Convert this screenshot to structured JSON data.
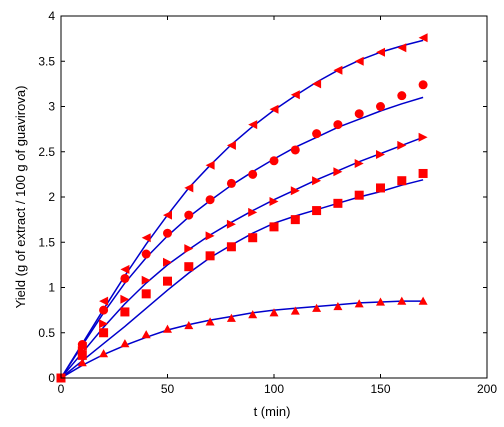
{
  "chart_data": {
    "type": "scatter",
    "title": "",
    "xlabel": "t (min)",
    "ylabel": "Yield (g of extract / 100 g of guavirova)",
    "xlim": [
      0,
      200
    ],
    "ylim": [
      0,
      4
    ],
    "x_ticks": [
      "0",
      "50",
      "100",
      "150",
      "200"
    ],
    "y_ticks": [
      "0",
      "0.5",
      "1",
      "1.5",
      "2",
      "2.5",
      "3",
      "3.5",
      "4"
    ],
    "grid": false,
    "legend": "none",
    "marker_color": "#ff0000",
    "line_color": "#0000cc",
    "series": [
      {
        "marker": "triangle-left",
        "x": [
          0,
          10,
          20,
          30,
          40,
          50,
          60,
          70,
          80,
          90,
          100,
          110,
          120,
          130,
          140,
          150,
          160,
          170
        ],
        "y": [
          0,
          0.35,
          0.85,
          1.2,
          1.55,
          1.8,
          2.1,
          2.35,
          2.57,
          2.8,
          2.97,
          3.13,
          3.25,
          3.4,
          3.5,
          3.6,
          3.65,
          3.76
        ]
      },
      {
        "marker": "circle",
        "x": [
          0,
          10,
          20,
          30,
          40,
          50,
          60,
          70,
          80,
          90,
          100,
          110,
          120,
          130,
          140,
          150,
          160,
          170
        ],
        "y": [
          0,
          0.37,
          0.75,
          1.1,
          1.37,
          1.6,
          1.8,
          1.97,
          2.15,
          2.25,
          2.4,
          2.52,
          2.7,
          2.8,
          2.92,
          3.0,
          3.12,
          3.24
        ]
      },
      {
        "marker": "triangle-right",
        "x": [
          0,
          10,
          20,
          30,
          40,
          50,
          60,
          70,
          80,
          90,
          100,
          110,
          120,
          130,
          140,
          150,
          160,
          170
        ],
        "y": [
          0,
          0.3,
          0.6,
          0.87,
          1.08,
          1.28,
          1.43,
          1.57,
          1.7,
          1.83,
          1.95,
          2.07,
          2.18,
          2.28,
          2.37,
          2.47,
          2.57,
          2.66
        ]
      },
      {
        "marker": "square",
        "x": [
          0,
          10,
          20,
          30,
          40,
          50,
          60,
          70,
          80,
          90,
          100,
          110,
          120,
          130,
          140,
          150,
          160,
          170
        ],
        "y": [
          0,
          0.25,
          0.5,
          0.73,
          0.93,
          1.07,
          1.23,
          1.35,
          1.45,
          1.55,
          1.67,
          1.75,
          1.85,
          1.93,
          2.02,
          2.1,
          2.18,
          2.26
        ]
      },
      {
        "marker": "triangle-up",
        "x": [
          0,
          10,
          20,
          30,
          40,
          50,
          60,
          70,
          80,
          90,
          100,
          110,
          120,
          130,
          140,
          150,
          160,
          170
        ],
        "y": [
          0,
          0.17,
          0.27,
          0.38,
          0.48,
          0.54,
          0.58,
          0.62,
          0.66,
          0.7,
          0.72,
          0.74,
          0.77,
          0.79,
          0.82,
          0.84,
          0.85,
          0.85
        ]
      }
    ],
    "fitted_curves": [
      {
        "x": [
          0,
          10,
          20,
          30,
          40,
          50,
          60,
          70,
          80,
          90,
          100,
          110,
          120,
          130,
          140,
          150,
          160,
          170
        ],
        "y": [
          0,
          0.38,
          0.76,
          1.13,
          1.48,
          1.8,
          2.1,
          2.35,
          2.58,
          2.78,
          2.96,
          3.12,
          3.27,
          3.4,
          3.51,
          3.6,
          3.67,
          3.73
        ]
      },
      {
        "x": [
          0,
          10,
          20,
          30,
          40,
          50,
          60,
          70,
          80,
          90,
          100,
          110,
          120,
          130,
          140,
          150,
          160,
          170
        ],
        "y": [
          0,
          0.36,
          0.72,
          1.05,
          1.33,
          1.57,
          1.78,
          1.96,
          2.13,
          2.28,
          2.42,
          2.55,
          2.66,
          2.77,
          2.86,
          2.95,
          3.03,
          3.1
        ]
      },
      {
        "x": [
          0,
          10,
          20,
          30,
          40,
          50,
          60,
          70,
          80,
          90,
          100,
          110,
          120,
          130,
          140,
          150,
          160,
          170
        ],
        "y": [
          0,
          0.28,
          0.56,
          0.82,
          1.05,
          1.25,
          1.42,
          1.58,
          1.72,
          1.85,
          1.97,
          2.08,
          2.19,
          2.29,
          2.39,
          2.48,
          2.57,
          2.66
        ]
      },
      {
        "x": [
          0,
          10,
          20,
          30,
          40,
          50,
          60,
          70,
          80,
          90,
          100,
          110,
          120,
          130,
          140,
          150,
          160,
          170
        ],
        "y": [
          0,
          0.19,
          0.38,
          0.57,
          0.77,
          0.97,
          1.16,
          1.33,
          1.47,
          1.6,
          1.71,
          1.79,
          1.86,
          1.93,
          2.0,
          2.06,
          2.13,
          2.19
        ]
      },
      {
        "x": [
          0,
          10,
          20,
          30,
          40,
          50,
          60,
          70,
          80,
          90,
          100,
          110,
          120,
          130,
          140,
          150,
          160,
          170
        ],
        "y": [
          0,
          0.14,
          0.26,
          0.36,
          0.45,
          0.53,
          0.59,
          0.64,
          0.68,
          0.72,
          0.75,
          0.77,
          0.79,
          0.81,
          0.83,
          0.84,
          0.85,
          0.85
        ]
      }
    ]
  }
}
